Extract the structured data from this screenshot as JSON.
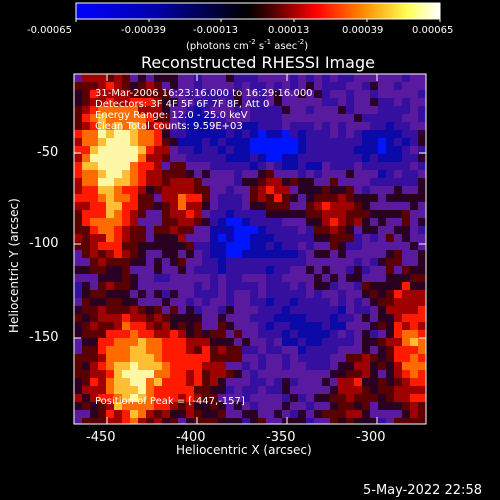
{
  "image": {
    "type": "RHESSI reconstructed solar flare image",
    "colorscale": [
      "#0000ff",
      "#0000aa",
      "#000000",
      "#770000",
      "#ff0000",
      "#ff8800",
      "#ffff88",
      "#ffffff"
    ],
    "background": "#000000"
  },
  "colorbar": {
    "tick_labels": [
      "-0.00065",
      "-0.00039",
      "-0.00013",
      "0.00013",
      "0.00039",
      "0.00065"
    ],
    "units_prefix": "(photons cm",
    "units_exp1": "-2",
    "units_mid": " s",
    "units_exp2": "-1",
    "units_suffix": " asec",
    "units_exp3": "-2",
    "units_close": ")"
  },
  "title": "Reconstructed RHESSI Image",
  "overlay": {
    "line1": "31-Mar-2006 16:23:16.000 to 16:29:16.000",
    "line2": "Detectors: 3F 4F 5F 6F 7F 8F, Att 0",
    "line3": "Energy Range: 12.0 - 25.0 keV",
    "line4": "Clean    Total counts: 9.59E+03",
    "peak": "Position of Peak = [-447,-157]"
  },
  "axes": {
    "x_label": "Heliocentric X (arcsec)",
    "y_label": "Heliocentric Y (arcsec)",
    "x_ticks": [
      "-450",
      "-400",
      "-350",
      "-300"
    ],
    "y_ticks": [
      "-50",
      "-100",
      "-150"
    ],
    "x_range": [
      -469,
      -273
    ],
    "y_range": [
      -197,
      -11
    ]
  },
  "date_stamp": "5-May-2022 22:58"
}
